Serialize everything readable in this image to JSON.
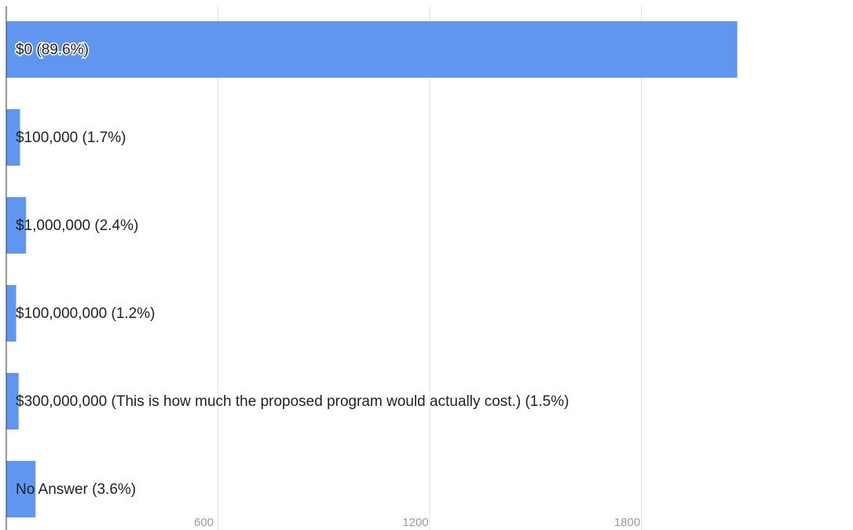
{
  "chart_data": {
    "type": "bar",
    "orientation": "horizontal",
    "categories": [
      "$0 (89.6%)",
      "$100,000 (1.7%)",
      "$1,000,000 (2.4%)",
      "$100,000,000 (1.2%)",
      "$300,000,000 (This is how much the proposed program would actually cost.) (1.5%)",
      "No Answer (3.6%)"
    ],
    "values": [
      2072,
      39,
      56,
      28,
      35,
      83
    ],
    "xlim": [
      0,
      2400
    ],
    "x_ticks": [
      600,
      1200,
      1800
    ],
    "x_tick_labels": [
      "600",
      "1200",
      "1800"
    ],
    "grid": true,
    "legend": "none",
    "bar_color": "#6096f0",
    "title": "",
    "xlabel": "",
    "ylabel": ""
  }
}
